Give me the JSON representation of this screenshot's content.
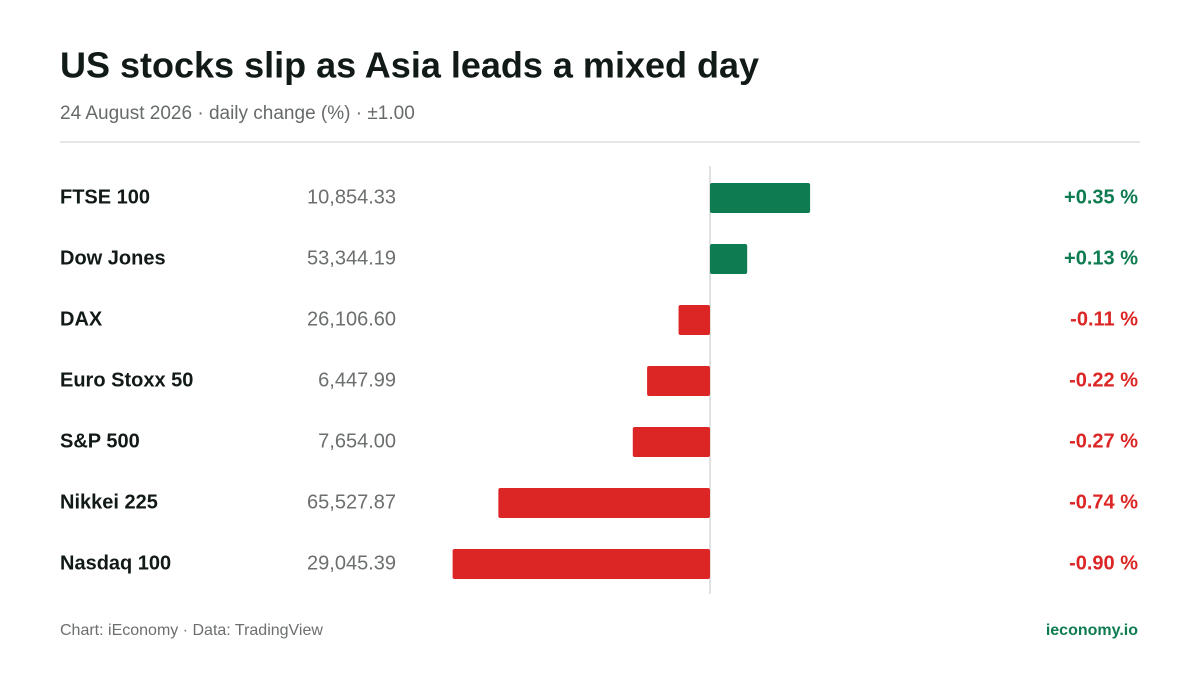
{
  "chart_data": {
    "type": "bar",
    "orientation": "horizontal",
    "title": "US stocks slip as Asia leads a mixed day",
    "subtitle": "24 August 2026 · daily change (%) · ±1.00",
    "categories": [
      "FTSE 100",
      "Dow Jones",
      "DAX",
      "Euro Stoxx 50",
      "S&P 500",
      "Nikkei 225",
      "Nasdaq 100"
    ],
    "levels": [
      "10,854.33",
      "53,344.19",
      "26,106.60",
      "6,447.99",
      "7,654.00",
      "65,527.87",
      "29,045.39"
    ],
    "values": [
      0.35,
      0.13,
      -0.11,
      -0.22,
      -0.27,
      -0.74,
      -0.9
    ],
    "value_labels": [
      "+0.35 %",
      "+0.13 %",
      "-0.11 %",
      "-0.22 %",
      "-0.27 %",
      "-0.74 %",
      "-0.90 %"
    ],
    "xlim": [
      -1,
      1
    ],
    "positive_color": "#0e7c50",
    "negative_color": "#dc2626",
    "source": "Chart: iEconomy · Data: TradingView",
    "brand": "ieconomy.io"
  }
}
